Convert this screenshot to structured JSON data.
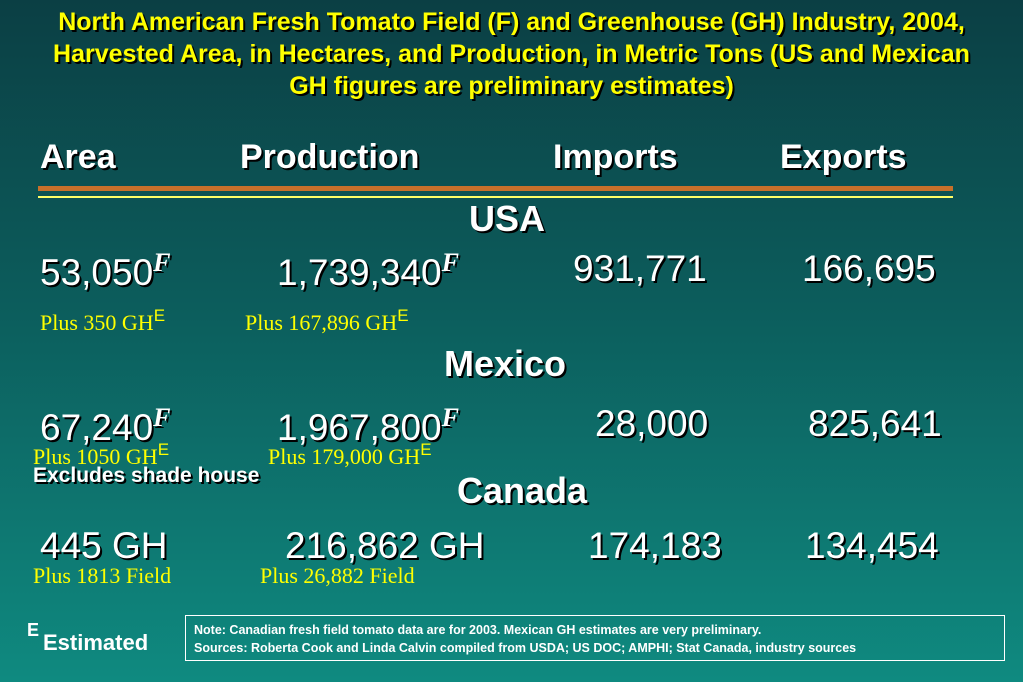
{
  "title": "North American Fresh Tomato Field (F) and Greenhouse (GH) Industry, 2004, Harvested Area, in Hectares, and Production, in Metric Tons (US and Mexican GH figures are preliminary estimates)",
  "headers": [
    "Area",
    "Production",
    "Imports",
    "Exports"
  ],
  "sections": [
    {
      "country": "USA",
      "values": [
        {
          "text": "53,050",
          "sup": "F"
        },
        {
          "text": "1,739,340",
          "sup": "F"
        },
        {
          "text": "931,771"
        },
        {
          "text": "166,695"
        }
      ],
      "notes": [
        {
          "text": "Plus 350 GH",
          "sup": "E"
        },
        {
          "text": "Plus 167,896 GH",
          "sup": "E"
        }
      ]
    },
    {
      "country": "Mexico",
      "values": [
        {
          "text": "67,240",
          "sup": "F"
        },
        {
          "text": "1,967,800",
          "sup": "F"
        },
        {
          "text": "28,000"
        },
        {
          "text": "825,641"
        }
      ],
      "notes": [
        {
          "text": "Plus 1050 GH",
          "sup": "E"
        },
        {
          "text": "Plus 179,000 GH",
          "sup": "E"
        }
      ],
      "extra_note": "Excludes shade house"
    },
    {
      "country": "Canada",
      "values": [
        {
          "text": "445 GH"
        },
        {
          "text": "216,862 GH"
        },
        {
          "text": "174,183"
        },
        {
          "text": "134,454"
        }
      ],
      "notes": [
        {
          "text": "Plus 1813 Field"
        },
        {
          "text": "Plus 26,882 Field"
        }
      ]
    }
  ],
  "legend": {
    "sup": "E",
    "text": "Estimated"
  },
  "footnote": [
    "Note: Canadian fresh field tomato data are for 2003. Mexican GH estimates are very preliminary.",
    "Sources: Roberta Cook and Linda Calvin compiled from USDA; US DOC; AMPHI; Stat Canada, industry sources"
  ]
}
